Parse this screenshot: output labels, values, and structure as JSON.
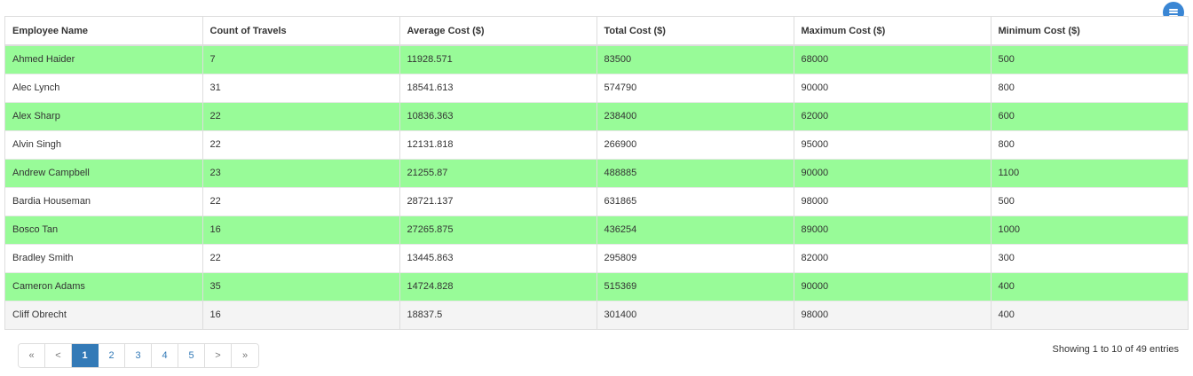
{
  "table": {
    "headers": [
      "Employee Name",
      "Count of Travels",
      "Average Cost ($)",
      "Total Cost ($)",
      "Maximum Cost ($)",
      "Minimum Cost ($)"
    ],
    "rows": [
      [
        "Ahmed Haider",
        "7",
        "11928.571",
        "83500",
        "68000",
        "500"
      ],
      [
        "Alec Lynch",
        "31",
        "18541.613",
        "574790",
        "90000",
        "800"
      ],
      [
        "Alex Sharp",
        "22",
        "10836.363",
        "238400",
        "62000",
        "600"
      ],
      [
        "Alvin Singh",
        "22",
        "12131.818",
        "266900",
        "95000",
        "800"
      ],
      [
        "Andrew Campbell",
        "23",
        "21255.87",
        "488885",
        "90000",
        "1100"
      ],
      [
        "Bardia Houseman",
        "22",
        "28721.137",
        "631865",
        "98000",
        "500"
      ],
      [
        "Bosco Tan",
        "16",
        "27265.875",
        "436254",
        "89000",
        "1000"
      ],
      [
        "Bradley Smith",
        "22",
        "13445.863",
        "295809",
        "82000",
        "300"
      ],
      [
        "Cameron Adams",
        "35",
        "14724.828",
        "515369",
        "90000",
        "400"
      ],
      [
        "Cliff Obrecht",
        "16",
        "18837.5",
        "301400",
        "98000",
        "400"
      ]
    ],
    "row_styles": [
      "green",
      "white",
      "green",
      "white",
      "green",
      "white",
      "green",
      "white",
      "green",
      "grey"
    ]
  },
  "menu_button": {
    "icon": "hamburger-menu-icon"
  },
  "pagination": {
    "first": "«",
    "prev": "<",
    "pages": [
      "1",
      "2",
      "3",
      "4",
      "5"
    ],
    "active_page": "1",
    "next": ">",
    "last": "»"
  },
  "info_text": "Showing 1 to 10 of 49 entries",
  "colors": {
    "highlight_row": "#98fb98",
    "accent": "#337ab7",
    "menu_button": "#3a86d4"
  }
}
